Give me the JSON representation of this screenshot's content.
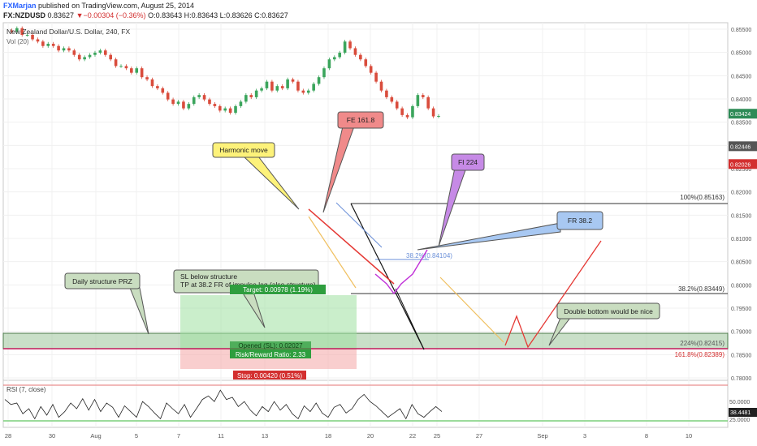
{
  "header": {
    "author": "FXMarjan",
    "published_text": "published on TradingView.com, August 25, 2014",
    "symbol": "FX:NZDUSD",
    "last": "0.83627",
    "change": "▼−0.00304 (−0.36%)",
    "ohlc": "O:0.83643 H:0.83643 L:0.83626 C:0.83627"
  },
  "chart_data": {
    "type": "line",
    "title": "New Zealand Dollar/U.S. Dollar, 240, FX",
    "volume_label": "Vol (20)",
    "rsi_label": "RSI (7, close)",
    "x_ticks": [
      "28",
      "30",
      "Aug",
      "5",
      "7",
      "11",
      "13",
      "18",
      "20",
      "22",
      "25",
      "27",
      "Sep",
      "3",
      "8",
      "10"
    ],
    "price_ticks": [
      "0.85500",
      "0.85000",
      "0.84500",
      "0.84000",
      "0.83500",
      "0.83000",
      "0.82500",
      "0.82000",
      "0.81500",
      "0.81000",
      "0.80500",
      "0.80000",
      "0.79500",
      "0.79000",
      "0.78500",
      "0.78000"
    ],
    "ylim": [
      0.7775,
      0.8565
    ],
    "price_series": [
      0.8555,
      0.8552,
      0.856,
      0.8545,
      0.8545,
      0.8535,
      0.853,
      0.852,
      0.8525,
      0.852,
      0.851,
      0.8515,
      0.851,
      0.85,
      0.849,
      0.8495,
      0.85,
      0.8505,
      0.851,
      0.85,
      0.849,
      0.8475,
      0.8475,
      0.847,
      0.846,
      0.847,
      0.845,
      0.8445,
      0.843,
      0.8425,
      0.8415,
      0.84,
      0.839,
      0.8395,
      0.838,
      0.839,
      0.8405,
      0.841,
      0.84,
      0.839,
      0.8385,
      0.8375,
      0.838,
      0.837,
      0.8385,
      0.8395,
      0.841,
      0.8405,
      0.842,
      0.8425,
      0.844,
      0.842,
      0.843,
      0.8425,
      0.8445,
      0.844,
      0.842,
      0.8415,
      0.842,
      0.8435,
      0.845,
      0.847,
      0.849,
      0.8495,
      0.8505,
      0.853,
      0.8515,
      0.85,
      0.849,
      0.8475,
      0.846,
      0.844,
      0.842,
      0.8405,
      0.8395,
      0.838,
      0.8365,
      0.836,
      0.8385,
      0.841,
      0.8405,
      0.838,
      0.8362,
      0.8363
    ],
    "price_tags": [
      {
        "label": "0.83424",
        "value": 0.8368,
        "color": "#2e8b57"
      },
      {
        "label": "0.82446",
        "value": 0.8295,
        "color": "#555555"
      },
      {
        "label": "0.82026",
        "value": 0.8255,
        "color": "#d32f2f"
      }
    ],
    "fib_labels": [
      "100%(0.85163)",
      "38.2%(0.83449)",
      "224%(0.82415)",
      "161.8%(0.82389)",
      "38.2%(0.84104)"
    ],
    "annotations": [
      {
        "id": "harmonic",
        "text": "Harmonic move",
        "color": "#fdf27a"
      },
      {
        "id": "fe",
        "text": "FE 161.8",
        "color": "#f08a8a"
      },
      {
        "id": "fi",
        "text": "FI 224",
        "color": "#c68ae6"
      },
      {
        "id": "fr",
        "text": "FR 38.2",
        "color": "#a8c8f2"
      },
      {
        "id": "daily",
        "text": "Daily structure PRZ",
        "color": "#c9ddc0"
      },
      {
        "id": "sl",
        "text": "SL below structure\nTP at 38.2 FR of impulse leg (also structure)",
        "color": "#c9ddc0"
      },
      {
        "id": "dbl",
        "text": "Double bottom would be nice",
        "color": "#c9ddc0"
      }
    ],
    "position": {
      "target": "Target: 0.00978 (1.19%)",
      "opened": "Opened (SL): 0.02027",
      "rr": "Risk/Reward Ratio: 2.33",
      "stop": "Stop: 0.00420 (0.51%)"
    },
    "rsi_ticks": [
      "50.0000",
      "25.0000"
    ],
    "rsi_tag": "38.4481",
    "rsi_series": [
      55,
      48,
      50,
      35,
      42,
      28,
      45,
      33,
      48,
      30,
      38,
      50,
      42,
      56,
      40,
      55,
      38,
      50,
      44,
      30,
      46,
      38,
      30,
      52,
      45,
      36,
      28,
      50,
      42,
      35,
      48,
      30,
      42,
      55,
      60,
      52,
      68,
      55,
      58,
      45,
      52,
      40,
      32,
      45,
      38,
      52,
      40,
      48,
      35,
      28,
      46,
      38,
      50,
      36,
      30,
      44,
      48,
      36,
      42,
      55,
      62,
      52,
      46,
      38,
      30,
      36,
      42,
      28,
      48,
      35,
      30,
      38,
      45,
      38
    ]
  }
}
